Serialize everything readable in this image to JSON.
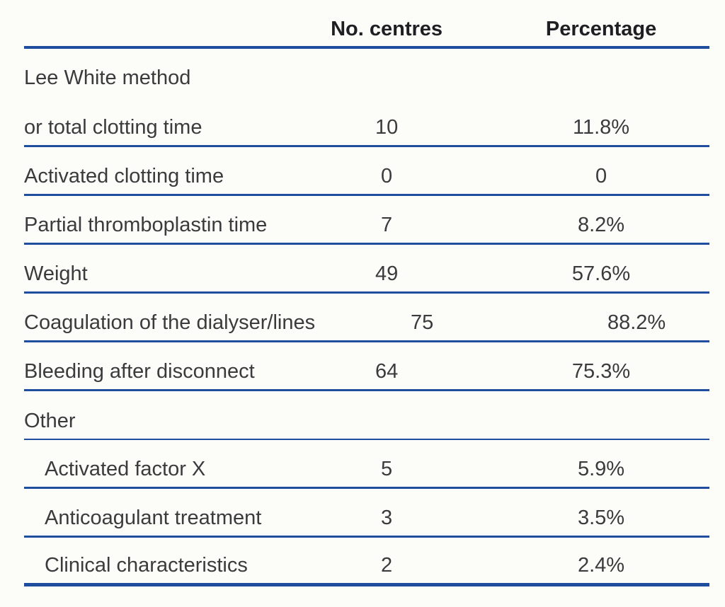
{
  "theme": {
    "rule": "#1e4e9d",
    "header-text": "#1f1f23",
    "body-text": "#3b3b3d",
    "bg": "#fcfcf9"
  },
  "table": {
    "header": {
      "col2": "No. centres",
      "col3": "Percentage"
    },
    "rows": [
      {
        "label_top": "Lee White method",
        "label": "or total clotting time",
        "centres": "10",
        "percentage": "11.8%"
      },
      {
        "label": "Activated clotting time",
        "centres": "0",
        "percentage": "0"
      },
      {
        "label": "Partial thromboplastin time",
        "centres": "7",
        "percentage": "8.2%"
      },
      {
        "label": "Weight",
        "centres": "49",
        "percentage": "57.6%"
      },
      {
        "label": "Coagulation of the dialyser/lines",
        "centres": "75",
        "percentage": "88.2%"
      },
      {
        "label": "Bleeding after disconnect",
        "centres": "64",
        "percentage": "75.3%"
      },
      {
        "label": "Other",
        "centres": "",
        "percentage": "",
        "rule": "thin"
      },
      {
        "label": "Activated factor X",
        "centres": "5",
        "percentage": "5.9%",
        "indent": true
      },
      {
        "label": "Anticoagulant treatment",
        "centres": "3",
        "percentage": "3.5%",
        "indent": true
      },
      {
        "label": "Clinical characteristics",
        "centres": "2",
        "percentage": "2.4%",
        "indent": true
      }
    ]
  },
  "chart_data": {
    "type": "table",
    "columns": [
      "",
      "No. centres",
      "Percentage"
    ],
    "rows": [
      [
        "Lee White method or total clotting time",
        10,
        "11.8%"
      ],
      [
        "Activated clotting time",
        0,
        "0"
      ],
      [
        "Partial thromboplastin time",
        7,
        "8.2%"
      ],
      [
        "Weight",
        49,
        "57.6%"
      ],
      [
        "Coagulation of the dialyser/lines",
        75,
        "88.2%"
      ],
      [
        "Bleeding after disconnect",
        64,
        "75.3%"
      ],
      [
        "Other",
        null,
        null
      ],
      [
        "Other: Activated factor X",
        5,
        "5.9%"
      ],
      [
        "Other: Anticoagulant treatment",
        3,
        "3.5%"
      ],
      [
        "Other: Clinical characteristics",
        2,
        "2.4%"
      ]
    ]
  }
}
